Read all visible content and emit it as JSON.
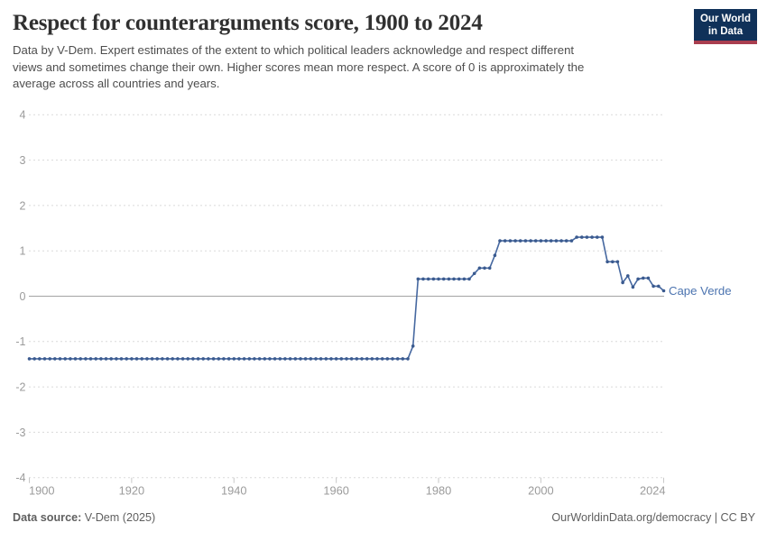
{
  "header": {
    "title": "Respect for counterarguments score, 1900 to 2024",
    "subtitle_lines": [
      "Data by V-Dem. Expert estimates of the extent to which political leaders acknowledge and respect different",
      "views and sometimes change their own. Higher scores mean more respect. A score of 0 is approximately the",
      "average across all countries and years."
    ],
    "logo_line1": "Our World",
    "logo_line2": "in Data"
  },
  "footer": {
    "source_label": "Data source:",
    "source_value": " V-Dem (2025)",
    "right_text": "OurWorldinData.org/democracy | CC BY"
  },
  "chart_data": {
    "type": "line",
    "title": "Respect for counterarguments score, 1900 to 2024",
    "entity_label": "Cape Verde",
    "xlabel": "",
    "ylabel": "",
    "x_start": 1900,
    "x_end": 2024,
    "x_step": 1,
    "xticks": [
      1900,
      1920,
      1940,
      1960,
      1980,
      2000,
      2024
    ],
    "yticks": [
      4,
      3,
      2,
      1,
      0,
      -1,
      -2,
      -3,
      -4
    ],
    "ylim": [
      -4,
      4
    ],
    "grid": "horizontal dashed, solid zero line, no legend (end-of-line label)",
    "series": [
      {
        "name": "Cape Verde",
        "values": [
          -1.38,
          -1.38,
          -1.38,
          -1.38,
          -1.38,
          -1.38,
          -1.38,
          -1.38,
          -1.38,
          -1.38,
          -1.38,
          -1.38,
          -1.38,
          -1.38,
          -1.38,
          -1.38,
          -1.38,
          -1.38,
          -1.38,
          -1.38,
          -1.38,
          -1.38,
          -1.38,
          -1.38,
          -1.38,
          -1.38,
          -1.38,
          -1.38,
          -1.38,
          -1.38,
          -1.38,
          -1.38,
          -1.38,
          -1.38,
          -1.38,
          -1.38,
          -1.38,
          -1.38,
          -1.38,
          -1.38,
          -1.38,
          -1.38,
          -1.38,
          -1.38,
          -1.38,
          -1.38,
          -1.38,
          -1.38,
          -1.38,
          -1.38,
          -1.38,
          -1.38,
          -1.38,
          -1.38,
          -1.38,
          -1.38,
          -1.38,
          -1.38,
          -1.38,
          -1.38,
          -1.38,
          -1.38,
          -1.38,
          -1.38,
          -1.38,
          -1.38,
          -1.38,
          -1.38,
          -1.38,
          -1.38,
          -1.38,
          -1.38,
          -1.38,
          -1.38,
          -1.38,
          -1.1,
          0.38,
          0.38,
          0.38,
          0.38,
          0.38,
          0.38,
          0.38,
          0.38,
          0.38,
          0.38,
          0.38,
          0.5,
          0.62,
          0.62,
          0.62,
          0.9,
          1.22,
          1.22,
          1.22,
          1.22,
          1.22,
          1.22,
          1.22,
          1.22,
          1.22,
          1.22,
          1.22,
          1.22,
          1.22,
          1.22,
          1.22,
          1.3,
          1.3,
          1.3,
          1.3,
          1.3,
          1.3,
          0.76,
          0.76,
          0.76,
          0.3,
          0.45,
          0.2,
          0.38,
          0.4,
          0.4,
          0.22,
          0.22,
          0.12
        ]
      }
    ],
    "colors": {
      "line": "#4668a0",
      "dot": "#3a5a8f",
      "label": "#4c74b0",
      "grid": "#dadada",
      "zero_line": "#a3a3a3",
      "tick": "#c8c8c8",
      "axis_text": "#9b9b9b"
    }
  }
}
